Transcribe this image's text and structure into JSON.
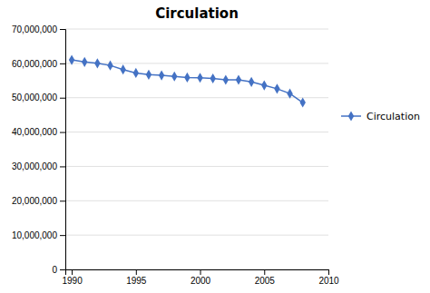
{
  "chart_data": {
    "type": "line",
    "title": "Circulation",
    "x": [
      1990,
      1991,
      1992,
      1993,
      1994,
      1995,
      1996,
      1997,
      1998,
      1999,
      2000,
      2001,
      2002,
      2003,
      2004,
      2005,
      2006,
      2007,
      2008
    ],
    "series": [
      {
        "name": "Circulation",
        "color": "#4472C4",
        "marker": "diamond",
        "values": [
          61000000,
          60400000,
          60000000,
          59400000,
          58200000,
          57200000,
          56700000,
          56500000,
          56200000,
          55900000,
          55800000,
          55600000,
          55200000,
          55200000,
          54600000,
          53600000,
          52600000,
          51200000,
          48600000
        ]
      }
    ],
    "xlim": [
      1989.5,
      2010
    ],
    "xticks": [
      1990,
      1995,
      2000,
      2005,
      2010
    ],
    "ylim": [
      0,
      70000000
    ],
    "yticks": [
      0,
      {
        "value": 10000000,
        "label": "10,000,000"
      },
      {
        "value": 20000000,
        "label": "20,000,000"
      },
      {
        "value": 30000000,
        "label": "30,000,000"
      },
      {
        "value": 40000000,
        "label": "40,000,000"
      },
      {
        "value": 50000000,
        "label": "50,000,000"
      },
      {
        "value": 60000000,
        "label": "60,000,000"
      },
      {
        "value": 70000000,
        "label": "70,000,000"
      }
    ],
    "grid": "y",
    "legend": "right"
  }
}
